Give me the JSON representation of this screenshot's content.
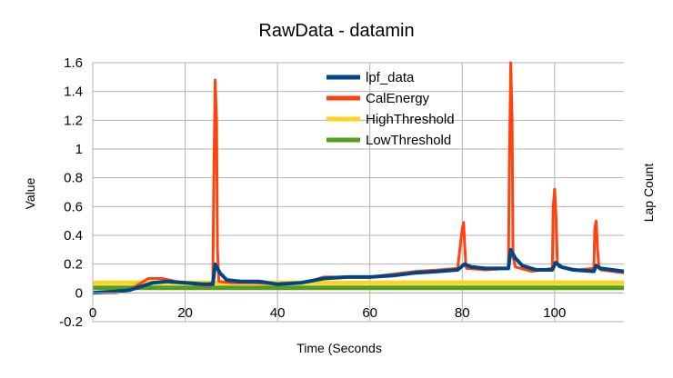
{
  "chart_data": {
    "type": "line",
    "title": "RawData - datamin",
    "xlabel": "Time (Seconds",
    "ylabel": "Value",
    "y2label": "Lap Count",
    "xlim": [
      0,
      115
    ],
    "ylim": [
      -0.2,
      1.6
    ],
    "x_ticks": [
      0,
      20,
      40,
      60,
      80,
      100
    ],
    "y_ticks": [
      1.6,
      1.4,
      1.2,
      1,
      0.8,
      0.6,
      0.4,
      0.2,
      0,
      -0.2
    ],
    "grid": true,
    "legend_position": "top-center",
    "series": [
      {
        "name": "CalEnergy",
        "color": "#ff420e",
        "x": [
          0,
          5,
          8,
          10,
          12,
          15,
          18,
          22,
          25,
          26,
          26.2,
          26.5,
          26.8,
          27,
          27.3,
          30,
          35,
          40,
          45,
          48,
          50,
          55,
          60,
          65,
          70,
          75,
          79,
          80,
          80.3,
          80.5,
          80.8,
          81,
          85,
          90,
          90.2,
          90.5,
          90.8,
          91,
          91.5,
          95,
          99.5,
          99.7,
          100,
          100.3,
          100.6,
          101,
          105,
          108.5,
          108.7,
          109,
          109.3,
          109.6,
          110,
          115
        ],
        "y": [
          0.0,
          0.0,
          0.02,
          0.06,
          0.1,
          0.1,
          0.08,
          0.06,
          0.05,
          0.08,
          0.8,
          1.48,
          1.2,
          0.3,
          0.08,
          0.07,
          0.07,
          0.06,
          0.07,
          0.09,
          0.11,
          0.11,
          0.11,
          0.13,
          0.15,
          0.16,
          0.17,
          0.45,
          0.49,
          0.35,
          0.18,
          0.17,
          0.16,
          0.17,
          0.9,
          1.6,
          1.2,
          0.25,
          0.18,
          0.15,
          0.17,
          0.6,
          0.72,
          0.55,
          0.2,
          0.18,
          0.16,
          0.17,
          0.45,
          0.5,
          0.3,
          0.17,
          0.16,
          0.14
        ]
      },
      {
        "name": "lpf_data",
        "color": "#004586",
        "x": [
          0,
          5,
          8,
          10,
          13,
          16,
          20,
          24,
          26,
          26.5,
          27.5,
          29,
          32,
          36,
          40,
          45,
          50,
          55,
          60,
          65,
          70,
          75,
          79,
          80.5,
          82,
          85,
          90,
          90.5,
          91.5,
          93,
          96,
          99.5,
          100.2,
          101.5,
          104,
          108.5,
          109,
          110,
          115
        ],
        "y": [
          0.0,
          0.01,
          0.02,
          0.04,
          0.07,
          0.08,
          0.07,
          0.06,
          0.06,
          0.2,
          0.14,
          0.09,
          0.08,
          0.08,
          0.06,
          0.07,
          0.1,
          0.11,
          0.11,
          0.12,
          0.14,
          0.15,
          0.16,
          0.2,
          0.18,
          0.17,
          0.17,
          0.3,
          0.24,
          0.19,
          0.16,
          0.16,
          0.21,
          0.18,
          0.16,
          0.15,
          0.19,
          0.17,
          0.15
        ]
      },
      {
        "name": "HighThreshold",
        "color": "#ffd320",
        "x": [
          0,
          115
        ],
        "y": [
          0.07,
          0.07
        ]
      },
      {
        "name": "LowThreshold",
        "color": "#579d1c",
        "x": [
          0,
          115
        ],
        "y": [
          0.035,
          0.035
        ]
      }
    ],
    "legend_order": [
      "lpf_data",
      "CalEnergy",
      "HighThreshold",
      "LowThreshold"
    ]
  }
}
